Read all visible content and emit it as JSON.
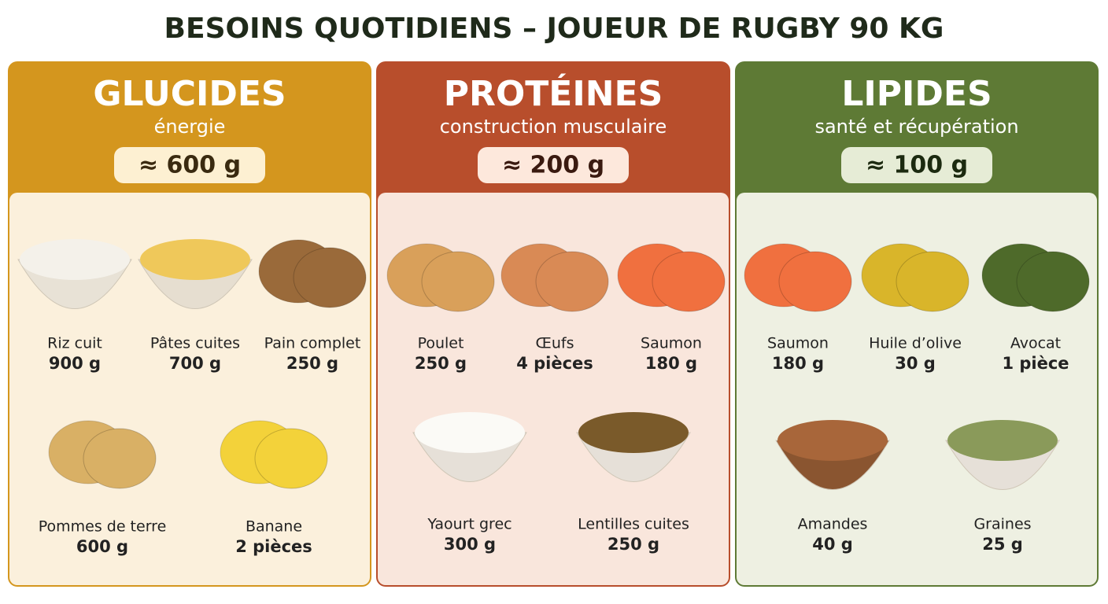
{
  "header": {
    "title": "BESOINS QUOTIDIENS – JOUEUR DE RUGBY 90 KG"
  },
  "panels": [
    {
      "title": "GLUCIDES",
      "subtitle": "énergie",
      "amount": "≈ 600 g",
      "items": [
        {
          "name": "Riz cuit",
          "quantity": "900 g"
        },
        {
          "name": "Pâtes cuites",
          "quantity": "700 g"
        },
        {
          "name": "Pain complet",
          "quantity": "250 g"
        },
        {
          "name": "Pommes de terre",
          "quantity": "600 g"
        },
        {
          "name": "Banane",
          "quantity": "2 pièces"
        }
      ]
    },
    {
      "title": "PROTÉINES",
      "subtitle": "construction musculaire",
      "amount": "≈ 200 g",
      "items": [
        {
          "name": "Poulet",
          "quantity": "250 g"
        },
        {
          "name": "Œufs",
          "quantity": "4 pièces"
        },
        {
          "name": "Saumon",
          "quantity": "180 g"
        },
        {
          "name": "Yaourt grec",
          "quantity": "300 g"
        },
        {
          "name": "Lentilles cuites",
          "quantity": "250 g"
        }
      ]
    },
    {
      "title": "LIPIDES",
      "subtitle": "santé et récupération",
      "amount": "≈ 100 g",
      "items": [
        {
          "name": "Saumon",
          "quantity": "180 g"
        },
        {
          "name": "Huile d’olive",
          "quantity": "30 g"
        },
        {
          "name": "Avocat",
          "quantity": "1 pièce"
        },
        {
          "name": "Amandes",
          "quantity": "40 g"
        },
        {
          "name": "Graines",
          "quantity": "25 g"
        }
      ]
    }
  ]
}
